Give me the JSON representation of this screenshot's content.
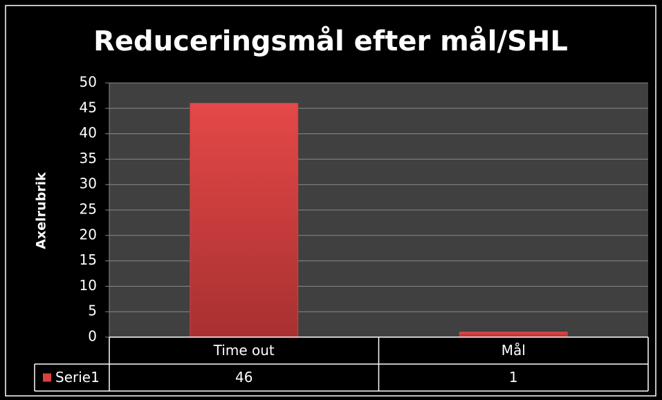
{
  "chart_data": {
    "type": "bar",
    "title": "Reduceringsmål efter mål/SHL",
    "y_label": "Axelrubrik",
    "categories": [
      "Time out",
      "Mål"
    ],
    "series": [
      {
        "name": "Serie1",
        "color": "#d94040",
        "values": [
          46,
          1
        ]
      }
    ],
    "ylim": [
      0,
      50
    ],
    "yticks": [
      0,
      5,
      10,
      15,
      20,
      25,
      30,
      35,
      40,
      45,
      50
    ],
    "grid": true,
    "data_table": true
  }
}
